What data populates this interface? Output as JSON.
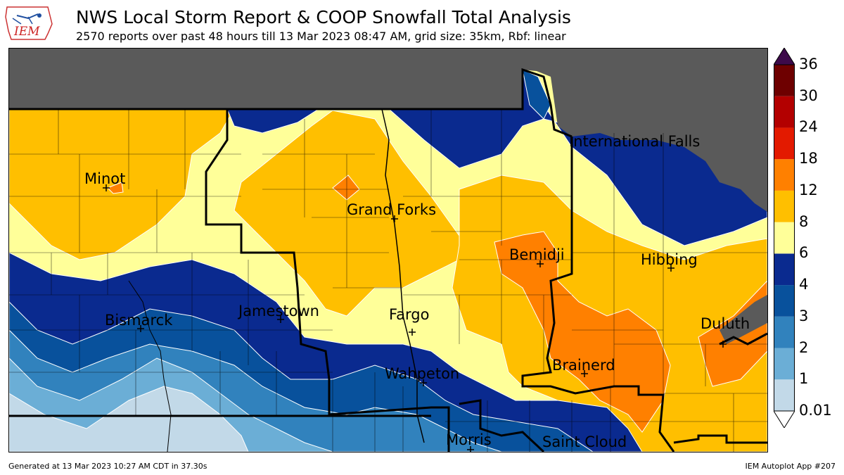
{
  "header": {
    "logo_text": "IEM",
    "title": "NWS Local Storm Report & COOP Snowfall Total Analysis",
    "subtitle": "2570 reports over past 48 hours till 13 Mar 2023 08:47 AM, grid size: 35km, Rbf: linear"
  },
  "map": {
    "cities": [
      {
        "name": "Minot"
      },
      {
        "name": "Grand Forks"
      },
      {
        "name": "International Falls"
      },
      {
        "name": "Bemidji"
      },
      {
        "name": "Hibbing"
      },
      {
        "name": "Bismarck"
      },
      {
        "name": "Jamestown"
      },
      {
        "name": "Fargo"
      },
      {
        "name": "Duluth"
      },
      {
        "name": "Wahpeton"
      },
      {
        "name": "Brainerd"
      },
      {
        "name": "Morris"
      },
      {
        "name": "Saint Cloud"
      }
    ],
    "no_data_color": "#5a5a5a"
  },
  "colorbar": {
    "ticks": [
      "36",
      "30",
      "24",
      "18",
      "12",
      "8",
      "6",
      "4",
      "3",
      "2",
      "1",
      "0.01"
    ],
    "colors": [
      "#c2d9e8",
      "#6baed6",
      "#3182bd",
      "#08519c",
      "#0a2a8f",
      "#ffff99",
      "#ffbf00",
      "#ff8000",
      "#e31a00",
      "#b30000",
      "#6e0000",
      "#3d0a4a"
    ]
  },
  "footer": {
    "left": "Generated at 13 Mar 2023 10:27 AM CDT in 37.30s",
    "right": "IEM Autoplot App #207"
  }
}
